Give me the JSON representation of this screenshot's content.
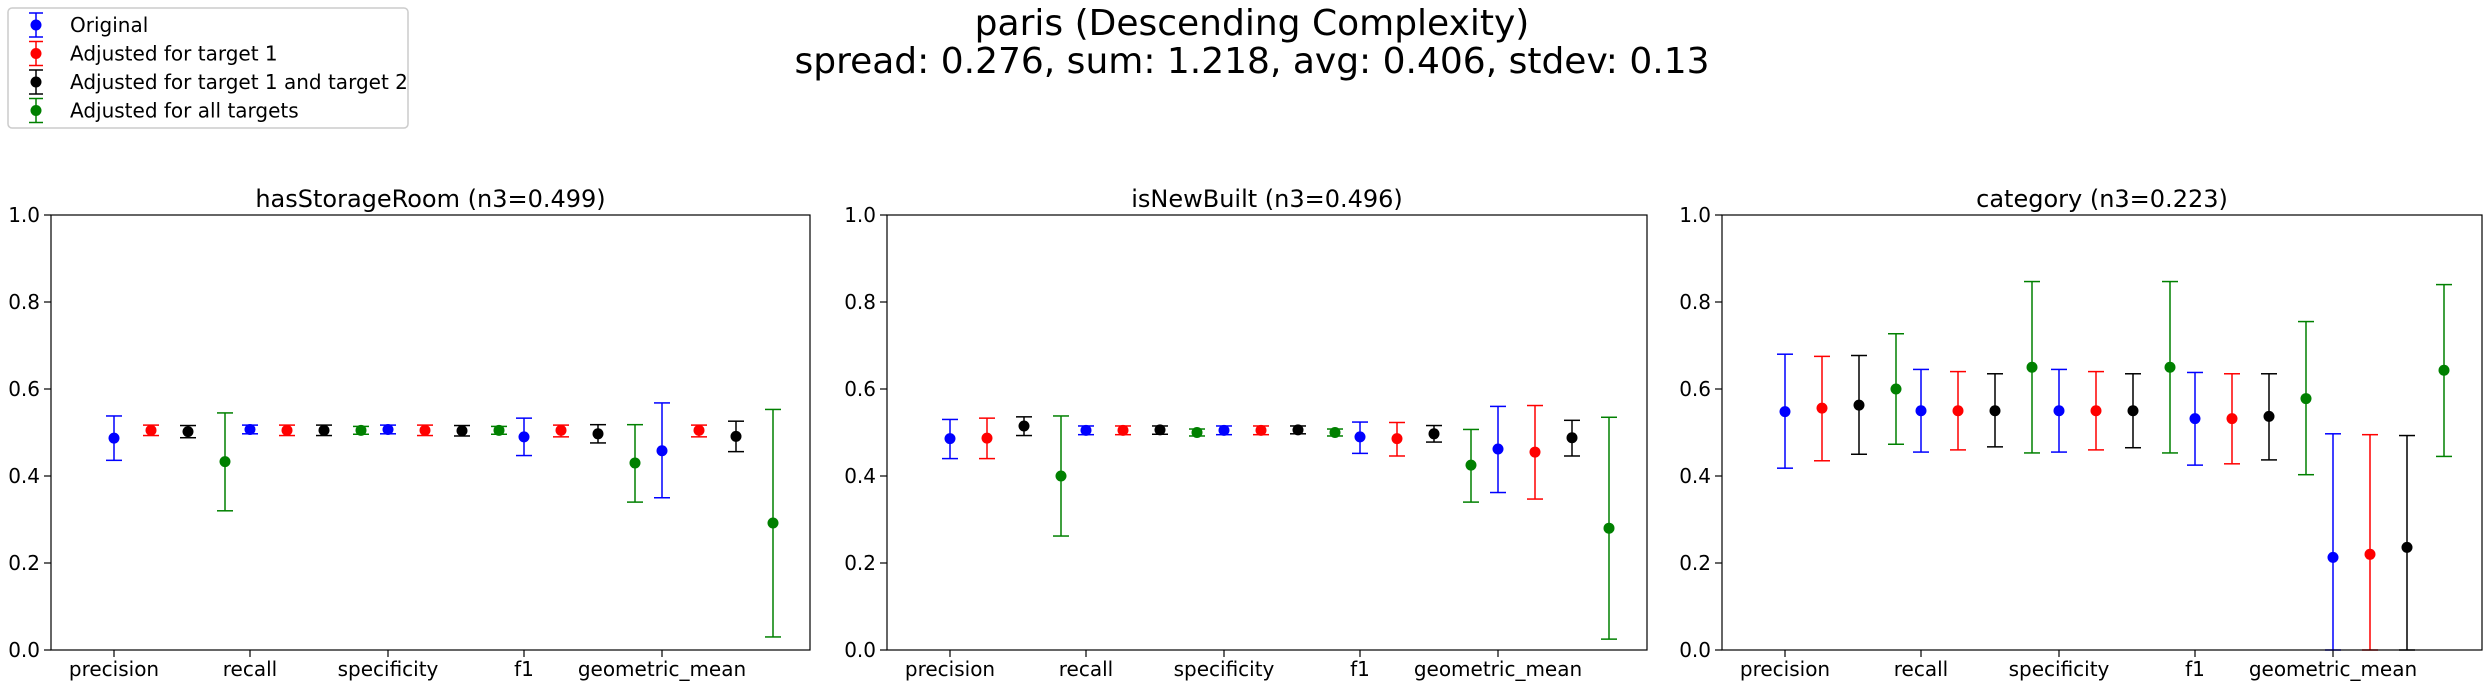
{
  "figure": {
    "title_line1": "paris (Descending Complexity)",
    "title_line2": "spread: 0.276, sum: 1.218, avg: 0.406, stdev: 0.13"
  },
  "legend": [
    {
      "label": "Original",
      "color": "#0000ff"
    },
    {
      "label": "Adjusted for target 1",
      "color": "#ff0000"
    },
    {
      "label": "Adjusted for target 1 and target 2",
      "color": "#000000"
    },
    {
      "label": "Adjusted for all targets",
      "color": "#008000"
    }
  ],
  "chart_data": [
    {
      "type": "scatter",
      "title": "hasStorageRoom (n3=0.499)",
      "categories": [
        "precision",
        "recall",
        "specificity",
        "f1",
        "geometric_mean"
      ],
      "ylim": [
        0,
        1.0
      ],
      "yticks": [
        "0.0",
        "0.2",
        "0.4",
        "0.6",
        "0.8",
        "1.0"
      ],
      "series": [
        {
          "name": "Original",
          "values": [
            0.487,
            0.507,
            0.507,
            0.49,
            0.458
          ],
          "err_low": [
            0.436,
            0.497,
            0.497,
            0.447,
            0.35
          ],
          "err_high": [
            0.538,
            0.517,
            0.517,
            0.533,
            0.568
          ]
        },
        {
          "name": "Adjusted for target 1",
          "values": [
            0.505,
            0.505,
            0.505,
            0.505,
            0.505
          ],
          "err_low": [
            0.493,
            0.493,
            0.493,
            0.49,
            0.49
          ],
          "err_high": [
            0.517,
            0.517,
            0.517,
            0.517,
            0.517
          ]
        },
        {
          "name": "Adjusted for target 1 and target 2",
          "values": [
            0.502,
            0.505,
            0.504,
            0.497,
            0.491
          ],
          "err_low": [
            0.488,
            0.493,
            0.492,
            0.476,
            0.456
          ],
          "err_high": [
            0.516,
            0.517,
            0.516,
            0.518,
            0.526
          ]
        },
        {
          "name": "Adjusted for all targets",
          "values": [
            0.433,
            0.505,
            0.505,
            0.43,
            0.292
          ],
          "err_low": [
            0.32,
            0.496,
            0.496,
            0.34,
            0.03
          ],
          "err_high": [
            0.545,
            0.514,
            0.514,
            0.518,
            0.553
          ]
        }
      ]
    },
    {
      "type": "scatter",
      "title": "isNewBuilt (n3=0.496)",
      "categories": [
        "precision",
        "recall",
        "specificity",
        "f1",
        "geometric_mean"
      ],
      "ylim": [
        0,
        1.0
      ],
      "yticks": [
        "0.0",
        "0.2",
        "0.4",
        "0.6",
        "0.8",
        "1.0"
      ],
      "series": [
        {
          "name": "Original",
          "values": [
            0.486,
            0.505,
            0.505,
            0.49,
            0.462
          ],
          "err_low": [
            0.44,
            0.495,
            0.495,
            0.452,
            0.362
          ],
          "err_high": [
            0.53,
            0.515,
            0.515,
            0.524,
            0.56
          ]
        },
        {
          "name": "Adjusted for target 1",
          "values": [
            0.487,
            0.505,
            0.505,
            0.486,
            0.455
          ],
          "err_low": [
            0.44,
            0.495,
            0.495,
            0.446,
            0.347
          ],
          "err_high": [
            0.533,
            0.515,
            0.515,
            0.523,
            0.562
          ]
        },
        {
          "name": "Adjusted for target 1 and target 2",
          "values": [
            0.515,
            0.506,
            0.506,
            0.497,
            0.488
          ],
          "err_low": [
            0.493,
            0.496,
            0.497,
            0.478,
            0.446
          ],
          "err_high": [
            0.536,
            0.515,
            0.515,
            0.516,
            0.528
          ]
        },
        {
          "name": "Adjusted for all targets",
          "values": [
            0.4,
            0.5,
            0.5,
            0.425,
            0.28
          ],
          "err_low": [
            0.262,
            0.492,
            0.492,
            0.34,
            0.025
          ],
          "err_high": [
            0.538,
            0.508,
            0.508,
            0.507,
            0.535
          ]
        }
      ]
    },
    {
      "type": "scatter",
      "title": "category (n3=0.223)",
      "categories": [
        "precision",
        "recall",
        "specificity",
        "f1",
        "geometric_mean"
      ],
      "ylim": [
        0,
        1.0
      ],
      "yticks": [
        "0.0",
        "0.2",
        "0.4",
        "0.6",
        "0.8",
        "1.0"
      ],
      "series": [
        {
          "name": "Original",
          "values": [
            0.548,
            0.55,
            0.55,
            0.532,
            0.213
          ],
          "err_low": [
            0.418,
            0.455,
            0.455,
            0.425,
            0.0
          ],
          "err_high": [
            0.68,
            0.645,
            0.645,
            0.638,
            0.497
          ]
        },
        {
          "name": "Adjusted for target 1",
          "values": [
            0.556,
            0.55,
            0.55,
            0.532,
            0.22
          ],
          "err_low": [
            0.435,
            0.46,
            0.46,
            0.428,
            0.0
          ],
          "err_high": [
            0.675,
            0.64,
            0.64,
            0.635,
            0.495
          ]
        },
        {
          "name": "Adjusted for target 1 and target 2",
          "values": [
            0.563,
            0.55,
            0.55,
            0.537,
            0.236
          ],
          "err_low": [
            0.45,
            0.467,
            0.465,
            0.437,
            0.0
          ],
          "err_high": [
            0.677,
            0.635,
            0.635,
            0.635,
            0.493
          ]
        },
        {
          "name": "Adjusted for all targets",
          "values": [
            0.6,
            0.65,
            0.65,
            0.578,
            0.643
          ],
          "err_low": [
            0.473,
            0.453,
            0.453,
            0.403,
            0.445
          ],
          "err_high": [
            0.727,
            0.847,
            0.847,
            0.755,
            0.84
          ]
        }
      ]
    }
  ]
}
